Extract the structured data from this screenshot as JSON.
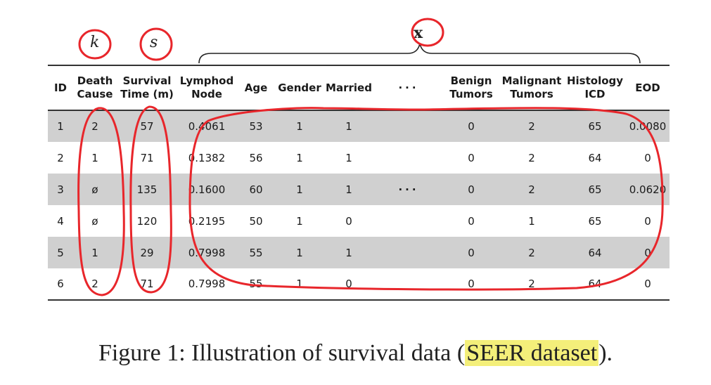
{
  "variable_labels": {
    "k": "k",
    "s": "s",
    "x": "x"
  },
  "table": {
    "headers": [
      [
        "ID"
      ],
      [
        "Death",
        "Cause"
      ],
      [
        "Survival",
        "Time (m)"
      ],
      [
        "Lymphod",
        "Node"
      ],
      [
        "Age"
      ],
      [
        "Gender"
      ],
      [
        "Married"
      ],
      [
        "···"
      ],
      [
        "Benign",
        "Tumors"
      ],
      [
        "Malignant",
        "Tumors"
      ],
      [
        "Histology",
        "ICD"
      ],
      [
        "EOD"
      ]
    ],
    "rows": [
      [
        "1",
        "2",
        "57",
        "0.4061",
        "53",
        "1",
        "1",
        "",
        "0",
        "2",
        "65",
        "0.0080"
      ],
      [
        "2",
        "1",
        "71",
        "0.1382",
        "56",
        "1",
        "1",
        "",
        "0",
        "2",
        "64",
        "0"
      ],
      [
        "3",
        "ø",
        "135",
        "0.1600",
        "60",
        "1",
        "1",
        "···",
        "0",
        "2",
        "65",
        "0.0620"
      ],
      [
        "4",
        "ø",
        "120",
        "0.2195",
        "50",
        "1",
        "0",
        "",
        "0",
        "1",
        "65",
        "0"
      ],
      [
        "5",
        "1",
        "29",
        "0.7998",
        "55",
        "1",
        "1",
        "",
        "0",
        "2",
        "64",
        "0"
      ],
      [
        "6",
        "2",
        "71",
        "0.7998",
        "55",
        "1",
        "0",
        "",
        "0",
        "2",
        "64",
        "0"
      ]
    ]
  },
  "caption": {
    "prefix": "Figure 1: Illustration of survival data (",
    "highlight": "SEER dataset",
    "suffix": ")."
  },
  "colors": {
    "annotation": "#e8262b",
    "row_shade": "#d0d0d0",
    "highlight": "#f4ef7a"
  }
}
